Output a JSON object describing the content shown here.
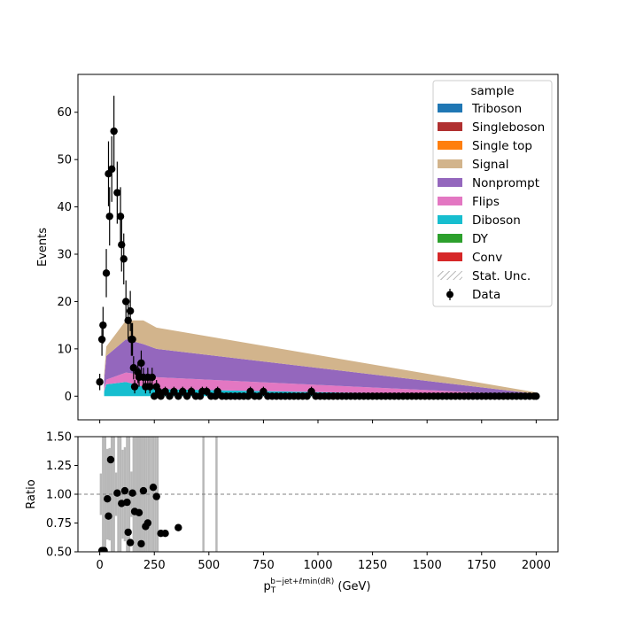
{
  "chart_data": [
    {
      "type": "bar",
      "stacked": true,
      "ylabel": "Events",
      "xlim": [
        -100,
        2100
      ],
      "ylim": [
        -5,
        68
      ],
      "yticks": [
        0,
        10,
        20,
        30,
        40,
        50,
        60
      ],
      "grid": false,
      "legend": {
        "placement": "top-right",
        "title": "sample",
        "entries": [
          {
            "name": "Triboson",
            "color": "#1f77b4"
          },
          {
            "name": "Singleboson",
            "color": "#b03030"
          },
          {
            "name": "Single top",
            "color": "#ff7f0e"
          },
          {
            "name": "Signal",
            "color": "#d2b48c"
          },
          {
            "name": "Nonprompt",
            "color": "#9467bd"
          },
          {
            "name": "Flips",
            "color": "#e377c2"
          },
          {
            "name": "Diboson",
            "color": "#17becf"
          },
          {
            "name": "DY",
            "color": "#2ca02c"
          },
          {
            "name": "Conv",
            "color": "#d62728"
          },
          {
            "name": "Stat. Unc.",
            "color": "#888888"
          },
          {
            "name": "Data",
            "color": "#000000"
          }
        ]
      },
      "series": [
        {
          "name": "Diboson",
          "color": "#17becf",
          "x": [
            20,
            30,
            120,
            200,
            260,
            2000
          ],
          "values": [
            1.0,
            2.5,
            3.0,
            2.0,
            1.5,
            0.0
          ]
        },
        {
          "name": "Flips",
          "color": "#e377c2",
          "x": [
            20,
            30,
            120,
            200,
            260,
            2000
          ],
          "values": [
            0.5,
            1.0,
            2.0,
            2.5,
            2.5,
            0.2
          ]
        },
        {
          "name": "Nonprompt",
          "color": "#9467bd",
          "x": [
            20,
            30,
            120,
            200,
            260,
            2000
          ],
          "values": [
            2.0,
            5.0,
            7.0,
            6.5,
            6.0,
            0.3
          ]
        },
        {
          "name": "Signal",
          "color": "#d2b48c",
          "x": [
            20,
            30,
            120,
            200,
            260,
            2000
          ],
          "values": [
            1.0,
            2.0,
            4.0,
            5.0,
            4.5,
            0.3
          ]
        }
      ],
      "data_points": {
        "name": "Data",
        "x": [
          0,
          10,
          15,
          30,
          40,
          45,
          55,
          65,
          80,
          95,
          100,
          110,
          120,
          130,
          140,
          145,
          150,
          155,
          160,
          175,
          180,
          190,
          200,
          210,
          220,
          230,
          240,
          250,
          260,
          270,
          280,
          300,
          320,
          340,
          360,
          380,
          400,
          420,
          440,
          460,
          470,
          490,
          510,
          530,
          540,
          560,
          580,
          600,
          620,
          640,
          660,
          680,
          690,
          710,
          730,
          750,
          770,
          790,
          810,
          830,
          850,
          870,
          890,
          910,
          930,
          950,
          970,
          990,
          1010,
          1030,
          1050,
          1070,
          1090,
          1110,
          1130,
          1150,
          1170,
          1190,
          1210,
          1230,
          1250,
          1270,
          1290,
          1310,
          1330,
          1350,
          1370,
          1390,
          1410,
          1430,
          1450,
          1470,
          1490,
          1510,
          1530,
          1550,
          1570,
          1590,
          1610,
          1630,
          1650,
          1670,
          1690,
          1710,
          1730,
          1750,
          1770,
          1790,
          1810,
          1830,
          1850,
          1870,
          1890,
          1910,
          1930,
          1950,
          1970,
          1990,
          2000
        ],
        "values": [
          3,
          12,
          15,
          26,
          47,
          38,
          48,
          56,
          43,
          38,
          32,
          29,
          20,
          16,
          18,
          12,
          12,
          6,
          2,
          5,
          4,
          7,
          4,
          2,
          4,
          2,
          4,
          0,
          2,
          1,
          0,
          1,
          0,
          1,
          0,
          1,
          0,
          1,
          0,
          0,
          1,
          1,
          0,
          0,
          1,
          0,
          0,
          0,
          0,
          0,
          0,
          0,
          1,
          0,
          0,
          1,
          0,
          0,
          0,
          0,
          0,
          0,
          0,
          0,
          0,
          0,
          1,
          0,
          0,
          0,
          0,
          0,
          0,
          0,
          0,
          0,
          0,
          0,
          0,
          0,
          0,
          0,
          0,
          0,
          0,
          0,
          0,
          0,
          0,
          0,
          0,
          0,
          0,
          0,
          0,
          0,
          0,
          0,
          0,
          0,
          0,
          0,
          0,
          0,
          0,
          0,
          0,
          0,
          0,
          0,
          0,
          0,
          0,
          0,
          0,
          0,
          0,
          0,
          0
        ]
      }
    },
    {
      "type": "scatter",
      "ylabel": "Ratio",
      "xlabel_main": "p",
      "xlabel_sub": "T",
      "xlabel_sup": "b−jet+ℓmin(dR)",
      "xlabel_unit": " (GeV)",
      "xlim": [
        -100,
        2100
      ],
      "ylim": [
        0.5,
        1.5
      ],
      "xticks": [
        0,
        250,
        500,
        750,
        1000,
        1250,
        1500,
        1750,
        2000
      ],
      "yticks": [
        "0.50",
        "0.75",
        "1.00",
        "1.25",
        "1.50"
      ],
      "reference_line": 1.0,
      "uncertainty_band": {
        "bins": [
          0,
          270
        ],
        "extra_bins": [
          470,
          530
        ]
      },
      "x": [
        10,
        20,
        35,
        40,
        50,
        80,
        100,
        115,
        125,
        130,
        140,
        150,
        160,
        180,
        190,
        200,
        210,
        220,
        245,
        260,
        280,
        300,
        360
      ],
      "values": [
        0.51,
        0.51,
        0.96,
        0.81,
        1.3,
        1.01,
        0.92,
        1.03,
        0.93,
        0.67,
        0.58,
        1.01,
        0.85,
        0.84,
        0.57,
        1.03,
        0.72,
        0.75,
        1.06,
        0.98,
        0.66,
        0.66,
        0.71
      ]
    }
  ]
}
